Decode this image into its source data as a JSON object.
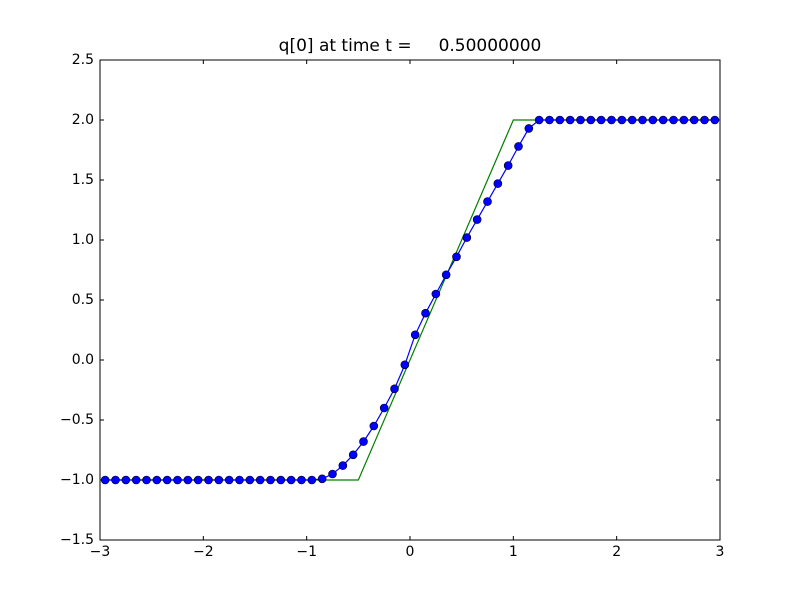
{
  "chart_data": {
    "type": "line",
    "title": "q[0] at time t =     0.50000000",
    "xlim": [
      -3,
      3
    ],
    "ylim": [
      -1.5,
      2.5
    ],
    "xticks": [
      {
        "value": -3,
        "label": "−3"
      },
      {
        "value": -2,
        "label": "−2"
      },
      {
        "value": -1,
        "label": "−1"
      },
      0,
      1,
      2,
      3
    ],
    "yticks": [
      {
        "value": -1.5,
        "label": "−1.5"
      },
      {
        "value": -1,
        "label": "−1.0"
      },
      {
        "value": -0.5,
        "label": "−0.5"
      },
      {
        "value": 0,
        "label": "0.0"
      },
      0.5,
      {
        "value": 1,
        "label": "1.0"
      },
      1.5,
      {
        "value": 2,
        "label": "2.0"
      },
      2.5
    ],
    "series": [
      {
        "color": "#008000",
        "x": [
          -3,
          -0.5,
          1,
          3
        ],
        "values": [
          -1,
          -1,
          2,
          2
        ]
      },
      {
        "color": "#0000ff",
        "marker": "o",
        "x": [
          -2.95,
          -2.85,
          -2.75,
          -2.65,
          -2.55,
          -2.45,
          -2.35,
          -2.25,
          -2.15,
          -2.05,
          -1.95,
          -1.85,
          -1.75,
          -1.65,
          -1.55,
          -1.45,
          -1.35,
          -1.25,
          -1.15,
          -1.05,
          -0.95,
          -0.85,
          -0.75,
          -0.65,
          -0.55,
          -0.45,
          -0.35,
          -0.25,
          -0.15,
          -0.05,
          0.05,
          0.15,
          0.25,
          0.35,
          0.45,
          0.55,
          0.65,
          0.75,
          0.85,
          0.95,
          1.05,
          1.15,
          1.25,
          1.35,
          1.45,
          1.55,
          1.65,
          1.75,
          1.85,
          1.95,
          2.05,
          2.15,
          2.25,
          2.35,
          2.45,
          2.55,
          2.65,
          2.75,
          2.85,
          2.95
        ],
        "values": [
          -1,
          -1,
          -1,
          -1,
          -1,
          -1,
          -1,
          -1,
          -1,
          -1,
          -1,
          -1,
          -1,
          -1,
          -1,
          -1,
          -1,
          -1,
          -1,
          -1,
          -1,
          -0.99,
          -0.95,
          -0.88,
          -0.79,
          -0.68,
          -0.55,
          -0.4,
          -0.24,
          -0.04,
          0.21,
          0.39,
          0.55,
          0.71,
          0.86,
          1.02,
          1.17,
          1.32,
          1.47,
          1.62,
          1.78,
          1.93,
          2,
          2,
          2,
          2,
          2,
          2,
          2,
          2,
          2,
          2,
          2,
          2,
          2,
          2,
          2,
          2,
          2,
          2
        ]
      }
    ]
  }
}
